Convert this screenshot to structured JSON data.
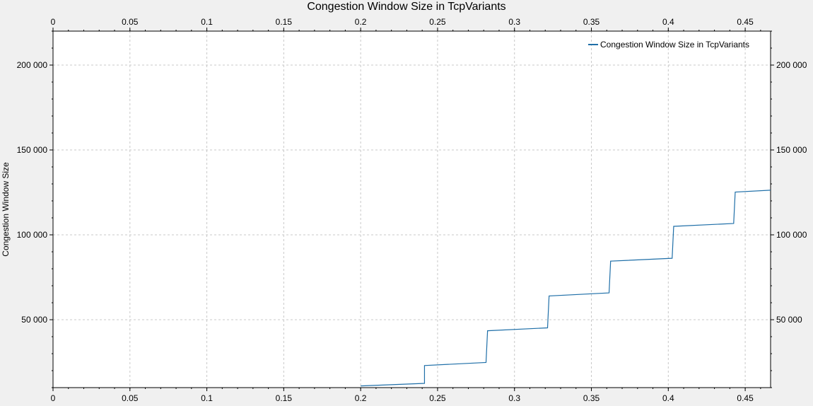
{
  "chart_data": {
    "type": "line",
    "title": "Congestion Window Size in TcpVariants",
    "xlabel": "",
    "ylabel": "Congestion Window Size",
    "xlim": [
      0,
      0.4665
    ],
    "ylim": [
      10000,
      220000
    ],
    "x_ticks": [
      0,
      0.05,
      0.1,
      0.15,
      0.2,
      0.25,
      0.3,
      0.35,
      0.4,
      0.45
    ],
    "x_tick_labels": [
      "0",
      "0.05",
      "0.1",
      "0.15",
      "0.2",
      "0.25",
      "0.3",
      "0.35",
      "0.4",
      "0.45"
    ],
    "y_ticks": [
      50000,
      100000,
      150000,
      200000
    ],
    "y_tick_labels": [
      "50 000",
      "100 000",
      "150 000",
      "200 000"
    ],
    "grid": true,
    "legend_position": "top-right",
    "series": [
      {
        "name": "Congestion Window Size in TcpVariants",
        "color": "#1f6fa8",
        "points": [
          [
            0.2,
            11000
          ],
          [
            0.2415,
            12500
          ],
          [
            0.2415,
            23000
          ],
          [
            0.2815,
            24800
          ],
          [
            0.2825,
            43500
          ],
          [
            0.3215,
            45200
          ],
          [
            0.3225,
            64000
          ],
          [
            0.3615,
            65800
          ],
          [
            0.3625,
            84500
          ],
          [
            0.4025,
            86200
          ],
          [
            0.4035,
            105000
          ],
          [
            0.4425,
            106700
          ],
          [
            0.4435,
            125200
          ],
          [
            0.4665,
            126300
          ]
        ]
      }
    ]
  }
}
